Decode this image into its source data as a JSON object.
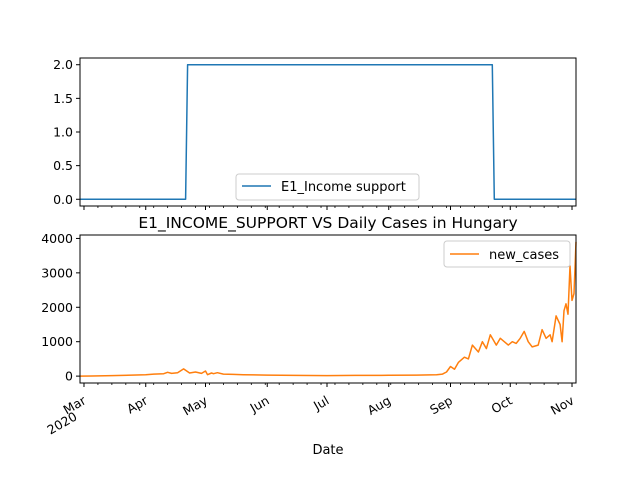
{
  "chart_data": [
    {
      "type": "line",
      "title": "",
      "xlabel": "",
      "ylabel": "",
      "x_range": [
        "2020-02-28",
        "2020-11-03"
      ],
      "ylim": [
        -0.1,
        2.1
      ],
      "yticks": [
        "0.0",
        "0.5",
        "1.0",
        "1.5",
        "2.0"
      ],
      "grid": false,
      "legend_position": "bottom-center",
      "series": [
        {
          "name": "E1_Income support",
          "color": "#1f77b4",
          "x": [
            "2020-02-28",
            "2020-04-21",
            "2020-04-22",
            "2020-09-22",
            "2020-09-23",
            "2020-11-03"
          ],
          "y": [
            0,
            0,
            2,
            2,
            0,
            0
          ]
        }
      ]
    },
    {
      "type": "line",
      "title": "E1_INCOME_SUPPORT VS Daily Cases in Hungary",
      "xlabel": "Date",
      "ylabel": "",
      "x_range": [
        "2020-02-28",
        "2020-11-03"
      ],
      "ylim": [
        -200,
        4100
      ],
      "yticks": [
        "0",
        "1000",
        "2000",
        "3000",
        "4000"
      ],
      "xticks": [
        {
          "date": "2020-03-01",
          "label": "Mar",
          "label2": "2020"
        },
        {
          "date": "2020-04-01",
          "label": "Apr"
        },
        {
          "date": "2020-05-01",
          "label": "May"
        },
        {
          "date": "2020-06-01",
          "label": "Jun"
        },
        {
          "date": "2020-07-01",
          "label": "Jul"
        },
        {
          "date": "2020-08-01",
          "label": "Aug"
        },
        {
          "date": "2020-09-01",
          "label": "Sep"
        },
        {
          "date": "2020-10-01",
          "label": "Oct"
        },
        {
          "date": "2020-11-01",
          "label": "Nov"
        }
      ],
      "grid": false,
      "legend_position": "top-right",
      "series": [
        {
          "name": "new_cases",
          "color": "#ff7f0e",
          "x": [
            "2020-02-28",
            "2020-03-05",
            "2020-03-15",
            "2020-03-25",
            "2020-04-01",
            "2020-04-05",
            "2020-04-10",
            "2020-04-12",
            "2020-04-14",
            "2020-04-17",
            "2020-04-20",
            "2020-04-23",
            "2020-04-26",
            "2020-04-29",
            "2020-05-01",
            "2020-05-02",
            "2020-05-04",
            "2020-05-05",
            "2020-05-07",
            "2020-05-10",
            "2020-05-15",
            "2020-05-20",
            "2020-06-01",
            "2020-06-15",
            "2020-07-01",
            "2020-07-15",
            "2020-08-01",
            "2020-08-15",
            "2020-08-25",
            "2020-08-28",
            "2020-08-30",
            "2020-09-01",
            "2020-09-03",
            "2020-09-05",
            "2020-09-08",
            "2020-09-10",
            "2020-09-12",
            "2020-09-15",
            "2020-09-17",
            "2020-09-19",
            "2020-09-21",
            "2020-09-24",
            "2020-09-26",
            "2020-09-28",
            "2020-09-30",
            "2020-10-02",
            "2020-10-04",
            "2020-10-06",
            "2020-10-08",
            "2020-10-10",
            "2020-10-12",
            "2020-10-15",
            "2020-10-17",
            "2020-10-19",
            "2020-10-21",
            "2020-10-22",
            "2020-10-24",
            "2020-10-26",
            "2020-10-27",
            "2020-10-28",
            "2020-10-29",
            "2020-10-30",
            "2020-10-31",
            "2020-11-01",
            "2020-11-02",
            "2020-11-03"
          ],
          "y": [
            0,
            3,
            15,
            30,
            40,
            60,
            70,
            110,
            80,
            100,
            210,
            90,
            120,
            80,
            150,
            40,
            90,
            70,
            100,
            60,
            50,
            40,
            30,
            20,
            15,
            20,
            25,
            30,
            40,
            60,
            120,
            280,
            200,
            400,
            550,
            500,
            900,
            700,
            1000,
            800,
            1200,
            900,
            1100,
            1000,
            900,
            1000,
            950,
            1100,
            1300,
            1000,
            850,
            900,
            1350,
            1100,
            1200,
            1000,
            1750,
            1500,
            1000,
            1900,
            2100,
            1800,
            3200,
            2200,
            2400,
            3900
          ]
        }
      ]
    }
  ]
}
